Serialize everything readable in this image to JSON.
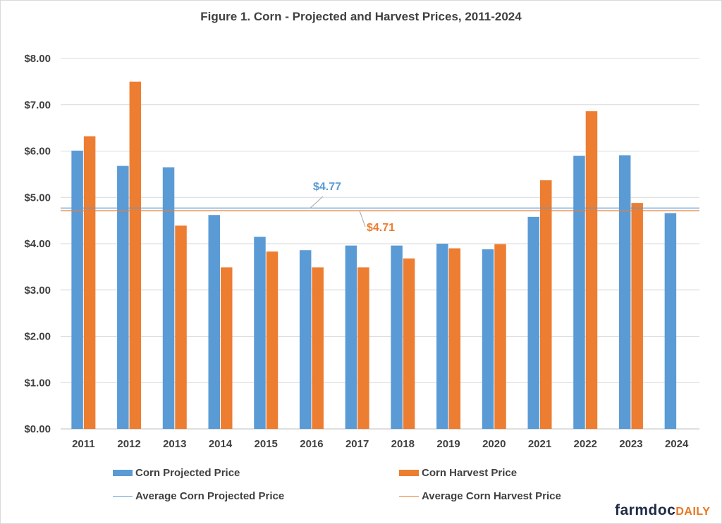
{
  "chart_data": {
    "type": "bar",
    "title": "Figure  1. Corn - Projected and Harvest Prices, 2011-2024",
    "categories": [
      "2011",
      "2012",
      "2013",
      "2014",
      "2015",
      "2016",
      "2017",
      "2018",
      "2019",
      "2020",
      "2021",
      "2022",
      "2023",
      "2024"
    ],
    "series": [
      {
        "name": "Corn Projected Price",
        "color": "#5b9bd5",
        "values": [
          6.01,
          5.68,
          5.65,
          4.62,
          4.15,
          3.86,
          3.96,
          3.96,
          4.0,
          3.88,
          4.58,
          5.9,
          5.91,
          4.66
        ]
      },
      {
        "name": "Corn Harvest Price",
        "color": "#ed7d31",
        "values": [
          6.32,
          7.5,
          4.39,
          3.49,
          3.83,
          3.49,
          3.49,
          3.68,
          3.9,
          3.99,
          5.37,
          6.86,
          4.88,
          null
        ]
      }
    ],
    "reference_lines": [
      {
        "name": "Average Corn Projected Price",
        "value": 4.77,
        "label": "$4.77",
        "color": "#5b9bd5"
      },
      {
        "name": "Average Corn Harvest Price",
        "value": 4.71,
        "label": "$4.71",
        "color": "#ed7d31"
      }
    ],
    "ylim": [
      0,
      8
    ],
    "yticks": [
      "$0.00",
      "$1.00",
      "$2.00",
      "$3.00",
      "$4.00",
      "$5.00",
      "$6.00",
      "$7.00",
      "$8.00"
    ],
    "grid": true,
    "legend": "bottom"
  },
  "logo": {
    "text_main": "farmdoc",
    "text_accent": "DAILY"
  }
}
